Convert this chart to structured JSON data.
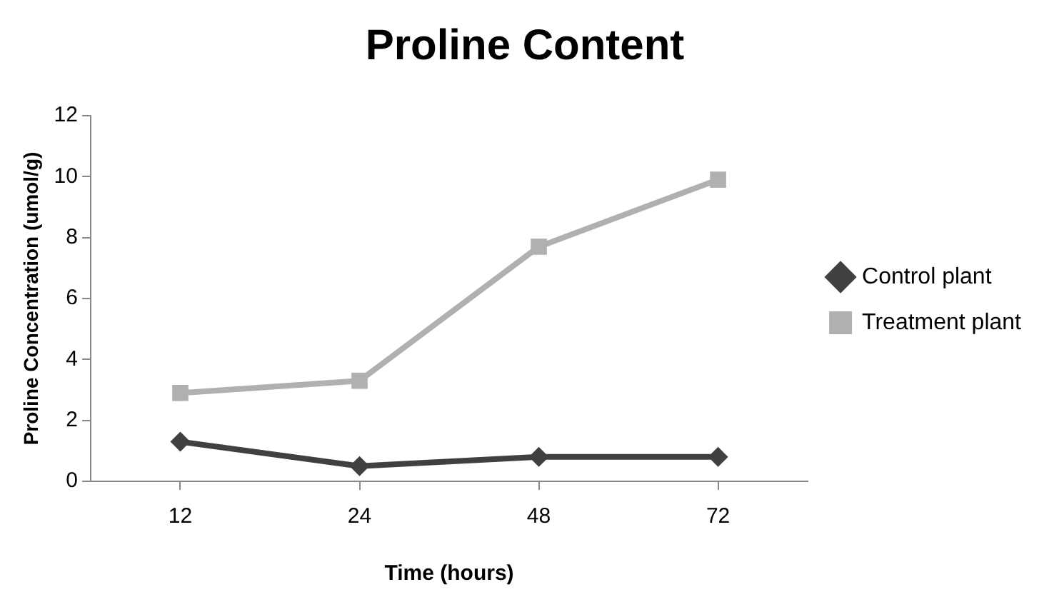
{
  "chart_data": {
    "type": "line",
    "title": "Proline Content",
    "xlabel": "Time (hours)",
    "ylabel": "Proline Concentration (umol/g)",
    "categories": [
      "12",
      "24",
      "48",
      "72"
    ],
    "series": [
      {
        "name": "Control plant",
        "color": "#404040",
        "marker": "diamond",
        "values": [
          1.3,
          0.5,
          0.8,
          0.8
        ]
      },
      {
        "name": "Treatment plant",
        "color": "#b0b0b0",
        "marker": "square",
        "values": [
          2.9,
          3.3,
          7.7,
          9.9
        ]
      }
    ],
    "ylim": [
      0,
      12
    ],
    "yticks": [
      0,
      2,
      4,
      6,
      8,
      10,
      12
    ],
    "legend": "right",
    "line_style": "solid"
  }
}
